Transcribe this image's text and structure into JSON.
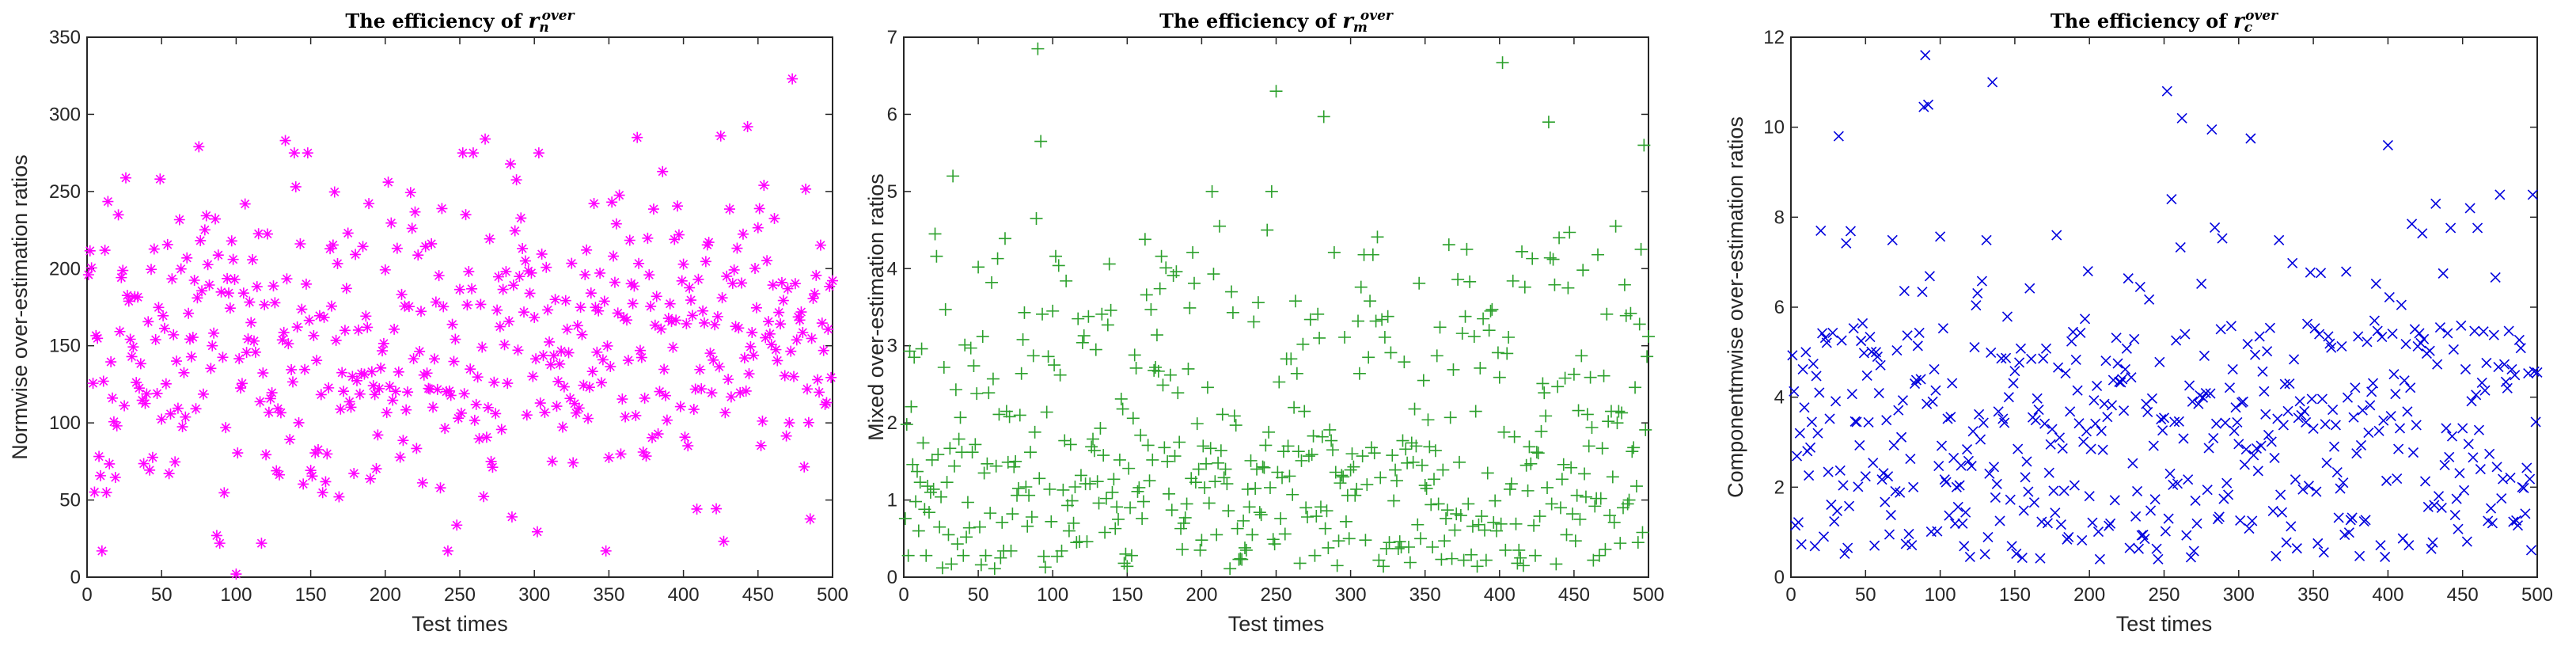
{
  "chart_data": [
    {
      "id": "normwise",
      "type": "scatter",
      "title_prefix": "The efficiency of ",
      "title_symbol": "r",
      "title_sub": "n",
      "title_sup": "over",
      "xlabel": "Test times",
      "ylabel": "Normwise over-estimation ratios",
      "xlim": [
        0,
        500
      ],
      "ylim": [
        0,
        350
      ],
      "xticks": [
        0,
        50,
        100,
        150,
        200,
        250,
        300,
        350,
        400,
        450,
        500
      ],
      "yticks": [
        0,
        50,
        100,
        150,
        200,
        250,
        300,
        350
      ],
      "marker": "asterisk",
      "color": "#ff00ff",
      "n_points": 500,
      "highlights": [
        {
          "x": 100,
          "y": 2
        },
        {
          "x": 10,
          "y": 17
        },
        {
          "x": 348,
          "y": 17
        },
        {
          "x": 242,
          "y": 17
        },
        {
          "x": 473,
          "y": 323
        },
        {
          "x": 443,
          "y": 292
        },
        {
          "x": 425,
          "y": 286
        },
        {
          "x": 369,
          "y": 285
        },
        {
          "x": 267,
          "y": 284
        },
        {
          "x": 75,
          "y": 279
        },
        {
          "x": 133,
          "y": 283
        },
        {
          "x": 87,
          "y": 27
        }
      ]
    },
    {
      "id": "mixed",
      "type": "scatter",
      "title_prefix": "The efficiency of ",
      "title_symbol": "r",
      "title_sub": "m",
      "title_sup": "over",
      "xlabel": "Test times",
      "ylabel": "Mixed over-estimation ratios",
      "xlim": [
        0,
        500
      ],
      "ylim": [
        0,
        7
      ],
      "xticks": [
        0,
        50,
        100,
        150,
        200,
        250,
        300,
        350,
        400,
        450,
        500
      ],
      "yticks": [
        0,
        1,
        2,
        3,
        4,
        5,
        6,
        7
      ],
      "marker": "plus",
      "color": "#2ca02c",
      "n_points": 500,
      "highlights": [
        {
          "x": 90,
          "y": 6.85
        },
        {
          "x": 402,
          "y": 6.67
        },
        {
          "x": 250,
          "y": 6.3
        },
        {
          "x": 282,
          "y": 5.97
        },
        {
          "x": 433,
          "y": 5.9
        },
        {
          "x": 92,
          "y": 5.65
        },
        {
          "x": 497,
          "y": 5.6
        },
        {
          "x": 33,
          "y": 5.2
        },
        {
          "x": 207,
          "y": 5.0
        },
        {
          "x": 247,
          "y": 5.0
        },
        {
          "x": 89,
          "y": 4.65
        },
        {
          "x": 212,
          "y": 4.55
        },
        {
          "x": 478,
          "y": 4.55
        },
        {
          "x": 378,
          "y": 4.25
        },
        {
          "x": 495,
          "y": 4.25
        }
      ]
    },
    {
      "id": "componentwise",
      "type": "scatter",
      "title_prefix": "The efficiency of ",
      "title_symbol": "r",
      "title_sub": "c",
      "title_sup": "over",
      "xlabel": "Test times",
      "ylabel": "Componentmwise over-estimation ratios",
      "xlim": [
        0,
        500
      ],
      "ylim": [
        0,
        12
      ],
      "xticks": [
        0,
        50,
        100,
        150,
        200,
        250,
        300,
        350,
        400,
        450,
        500
      ],
      "yticks": [
        0,
        2,
        4,
        6,
        8,
        10,
        12
      ],
      "marker": "cross",
      "color": "#0000dd",
      "n_points": 500,
      "highlights": [
        {
          "x": 90,
          "y": 11.6
        },
        {
          "x": 135,
          "y": 11.0
        },
        {
          "x": 252,
          "y": 10.8
        },
        {
          "x": 92,
          "y": 10.5
        },
        {
          "x": 89,
          "y": 10.45
        },
        {
          "x": 262,
          "y": 10.2
        },
        {
          "x": 282,
          "y": 9.95
        },
        {
          "x": 32,
          "y": 9.8
        },
        {
          "x": 308,
          "y": 9.75
        },
        {
          "x": 400,
          "y": 9.6
        },
        {
          "x": 475,
          "y": 8.5
        },
        {
          "x": 497,
          "y": 8.5
        },
        {
          "x": 255,
          "y": 8.4
        },
        {
          "x": 432,
          "y": 8.3
        },
        {
          "x": 455,
          "y": 8.2
        }
      ]
    }
  ]
}
